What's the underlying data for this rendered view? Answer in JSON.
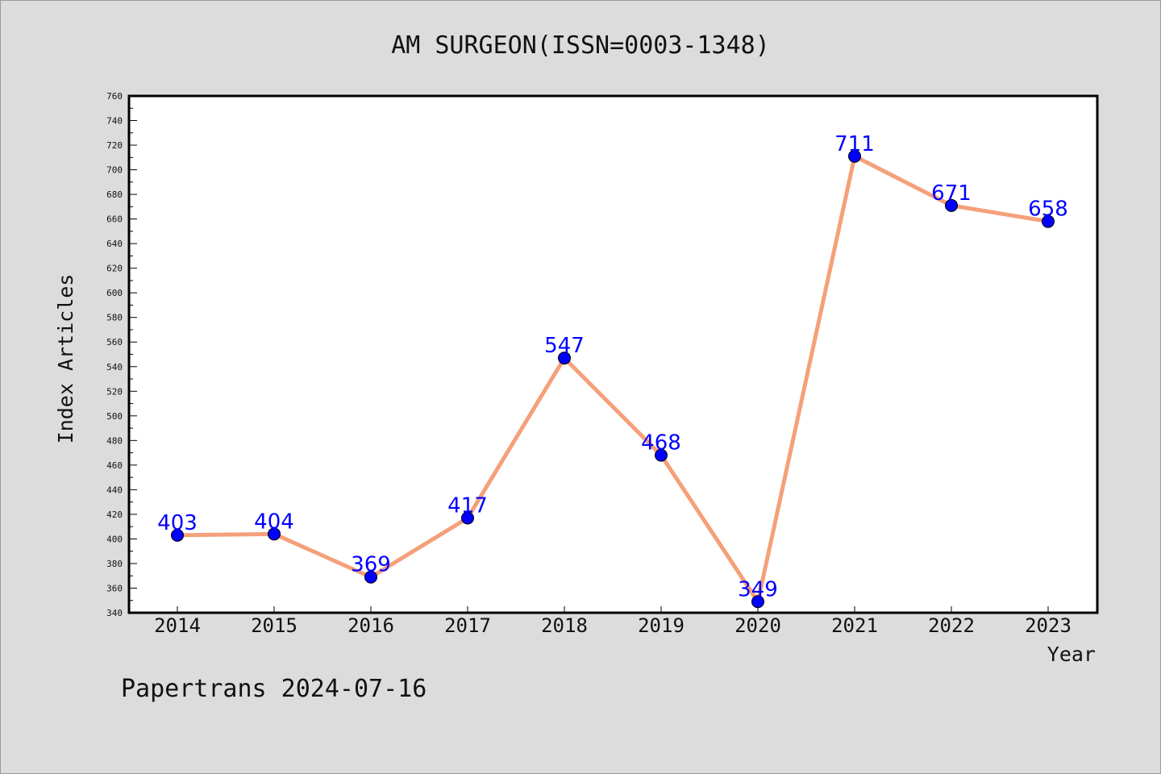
{
  "chart_data": {
    "type": "line",
    "title": "AM SURGEON(ISSN=0003-1348)",
    "xlabel": "Year",
    "ylabel": "Index Articles",
    "categories": [
      "2014",
      "2015",
      "2016",
      "2017",
      "2018",
      "2019",
      "2020",
      "2021",
      "2022",
      "2023"
    ],
    "values": [
      403,
      404,
      369,
      417,
      547,
      468,
      349,
      711,
      671,
      658
    ],
    "ylim": [
      340,
      760
    ],
    "ytick_step": 20,
    "grid": false,
    "legend": "none",
    "line_color": "#f5a07a",
    "marker_color": "#0000ff",
    "label_color": "#0000ff"
  },
  "footer": {
    "text": "Papertrans 2024-07-16"
  }
}
